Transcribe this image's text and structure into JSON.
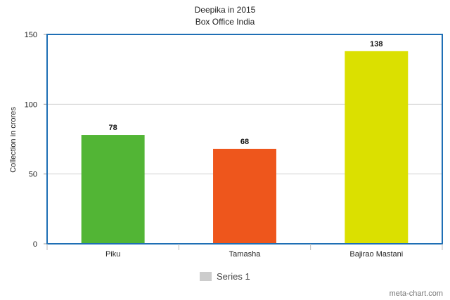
{
  "chart_data": {
    "type": "bar",
    "title": "Deepika in 2015",
    "subtitle": "Box Office India",
    "xlabel": "",
    "ylabel": "Collection in crores",
    "categories": [
      "Piku",
      "Tamasha",
      "Bajirao Mastani"
    ],
    "series": [
      {
        "name": "Series 1",
        "values": [
          78,
          68,
          138
        ]
      }
    ],
    "bar_colors": [
      "#52b535",
      "#ee561c",
      "#dbe000"
    ],
    "ylim": [
      0,
      150
    ],
    "yticks": [
      0,
      50,
      100,
      150
    ],
    "grid": true,
    "legend": "bottom-center",
    "legend_swatch_color": "#cccccc",
    "frame_color": "#1f6fb5"
  },
  "credit": "meta-chart.com"
}
